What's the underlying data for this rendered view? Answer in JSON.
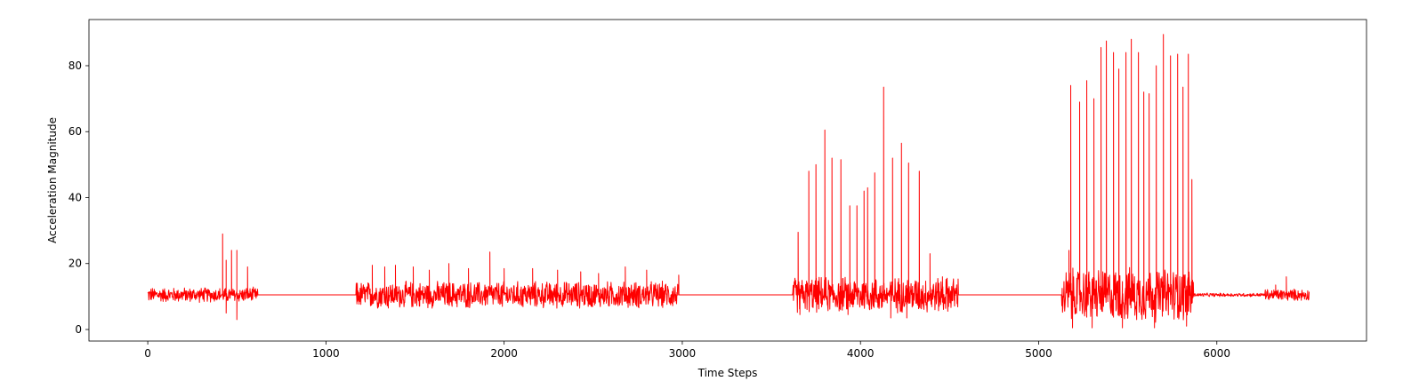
{
  "chart_data": {
    "type": "line",
    "title": "",
    "xlabel": "Time Steps",
    "ylabel": "Acceleration Magnitude",
    "xlim": [
      -330,
      6840
    ],
    "ylim": [
      -3.5,
      94
    ],
    "xticks": [
      0,
      1000,
      2000,
      3000,
      4000,
      5000,
      6000
    ],
    "yticks": [
      0,
      20,
      40,
      60,
      80
    ],
    "grid": false,
    "legend": "none",
    "series": [
      {
        "color": "#ff0000",
        "baseline": 10.5,
        "segments": [
          {
            "x_start": 0,
            "x_end": 620,
            "amp": 2.5,
            "spike_every": 0
          },
          {
            "x_start": 620,
            "x_end": 1170,
            "amp": 0,
            "spike_every": 0
          },
          {
            "x_start": 1170,
            "x_end": 2980,
            "amp": 4.5,
            "spike_every": 0
          },
          {
            "x_start": 2980,
            "x_end": 3620,
            "amp": 0,
            "spike_every": 0
          },
          {
            "x_start": 3620,
            "x_end": 4550,
            "amp": 6,
            "spike_every": 0
          },
          {
            "x_start": 4550,
            "x_end": 5130,
            "amp": 0,
            "spike_every": 0
          },
          {
            "x_start": 5130,
            "x_end": 5870,
            "amp": 9,
            "spike_every": 0
          },
          {
            "x_start": 5870,
            "x_end": 6270,
            "amp": 0.6,
            "spike_every": 0
          },
          {
            "x_start": 6270,
            "x_end": 6520,
            "amp": 2,
            "spike_every": 0
          }
        ],
        "peaks": [
          [
            420,
            29
          ],
          [
            470,
            24
          ],
          [
            500,
            24
          ],
          [
            560,
            19
          ],
          [
            440,
            21
          ],
          [
            1260,
            19.5
          ],
          [
            1330,
            19
          ],
          [
            1390,
            19.5
          ],
          [
            1490,
            19
          ],
          [
            1580,
            18
          ],
          [
            1690,
            20
          ],
          [
            1800,
            18.5
          ],
          [
            1920,
            23.5
          ],
          [
            2000,
            18.5
          ],
          [
            2160,
            18.5
          ],
          [
            2300,
            18
          ],
          [
            2430,
            17.5
          ],
          [
            2530,
            17
          ],
          [
            2680,
            19
          ],
          [
            2800,
            18
          ],
          [
            2980,
            16.5
          ],
          [
            3650,
            29.5
          ],
          [
            3710,
            48
          ],
          [
            3750,
            50
          ],
          [
            3800,
            60.5
          ],
          [
            3840,
            52
          ],
          [
            3890,
            51.5
          ],
          [
            3940,
            37.5
          ],
          [
            3980,
            37.5
          ],
          [
            4020,
            42
          ],
          [
            4040,
            43
          ],
          [
            4080,
            47.5
          ],
          [
            4130,
            73.5
          ],
          [
            4180,
            52
          ],
          [
            4230,
            56.5
          ],
          [
            4270,
            50.5
          ],
          [
            4330,
            48
          ],
          [
            4390,
            23
          ],
          [
            4460,
            16
          ],
          [
            5170,
            24
          ],
          [
            5180,
            74
          ],
          [
            5230,
            69
          ],
          [
            5270,
            75.5
          ],
          [
            5310,
            70
          ],
          [
            5350,
            85.5
          ],
          [
            5380,
            87.5
          ],
          [
            5420,
            84
          ],
          [
            5450,
            79
          ],
          [
            5490,
            84
          ],
          [
            5520,
            88
          ],
          [
            5560,
            84
          ],
          [
            5590,
            72
          ],
          [
            5620,
            71.5
          ],
          [
            5660,
            80
          ],
          [
            5700,
            89.5
          ],
          [
            5740,
            83
          ],
          [
            5780,
            83.5
          ],
          [
            5810,
            73.5
          ],
          [
            5840,
            83.5
          ],
          [
            5860,
            45.5
          ],
          [
            6330,
            13.5
          ],
          [
            6390,
            16
          ]
        ],
        "troughs": [
          [
            500,
            3
          ],
          [
            440,
            5
          ],
          [
            1350,
            6.5
          ],
          [
            1990,
            7
          ],
          [
            3660,
            4.5
          ],
          [
            3930,
            4.5
          ],
          [
            4170,
            3.5
          ],
          [
            4260,
            3.5
          ],
          [
            5190,
            0.5
          ],
          [
            5300,
            0.5
          ],
          [
            5470,
            0.5
          ],
          [
            5650,
            0.5
          ],
          [
            5830,
            1
          ]
        ]
      }
    ]
  }
}
